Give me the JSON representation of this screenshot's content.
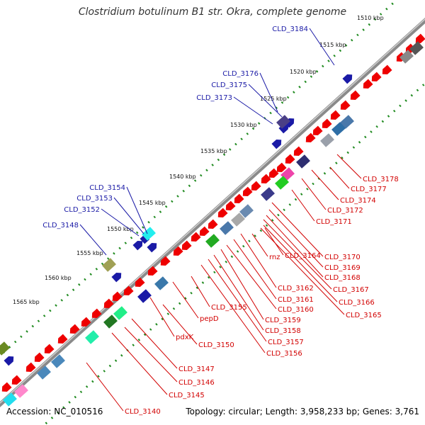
{
  "title": "Clostridium botulinum B1 str. Okra, complete genome",
  "footer": {
    "accession": "Accession: NC_010516",
    "summary": "Topology: circular; Length: 3,958,233 bp; Genes: 3,761"
  },
  "colors": {
    "forward_label": "#1a1aa6",
    "reverse_label": "#d20000",
    "dots": "#1f8a1f",
    "backbone": "#8a8a8a"
  },
  "ruler": [
    {
      "label": "1510 kbp"
    },
    {
      "label": "1515 kbp"
    },
    {
      "label": "1520 kbp"
    },
    {
      "label": "1525 kbp"
    },
    {
      "label": "1530 kbp"
    },
    {
      "label": "1535 kbp"
    },
    {
      "label": "1540 kbp"
    },
    {
      "label": "1545 kbp"
    },
    {
      "label": "1550 kbp"
    },
    {
      "label": "1555 kbp"
    },
    {
      "label": "1560 kbp"
    },
    {
      "label": "1565 kbp"
    }
  ],
  "forward_genes": [
    {
      "label": "CLD_3184"
    },
    {
      "label": "CLD_3176"
    },
    {
      "label": "CLD_3175"
    },
    {
      "label": "CLD_3173"
    },
    {
      "label": "CLD_3154"
    },
    {
      "label": "CLD_3153"
    },
    {
      "label": "CLD_3152"
    },
    {
      "label": "CLD_3148"
    }
  ],
  "reverse_genes": [
    {
      "label": "CLD_3178"
    },
    {
      "label": "CLD_3177"
    },
    {
      "label": "CLD_3174"
    },
    {
      "label": "CLD_3172"
    },
    {
      "label": "CLD_3171"
    },
    {
      "label": "CLD_3170"
    },
    {
      "label": "CLD_3169"
    },
    {
      "label": "CLD_3168"
    },
    {
      "label": "CLD_3167"
    },
    {
      "label": "CLD_3166"
    },
    {
      "label": "CLD_3165"
    },
    {
      "label": "rnz"
    },
    {
      "label": "CLD_3164"
    },
    {
      "label": "CLD_3162"
    },
    {
      "label": "CLD_3161"
    },
    {
      "label": "CLD_3160"
    },
    {
      "label": "CLD_3159"
    },
    {
      "label": "CLD_3158"
    },
    {
      "label": "CLD_3157"
    },
    {
      "label": "CLD_3156"
    },
    {
      "label": "CLD_3155"
    },
    {
      "label": "pepD"
    },
    {
      "label": "pdxK"
    },
    {
      "label": "CLD_3150"
    },
    {
      "label": "CLD_3147"
    },
    {
      "label": "CLD_3146"
    },
    {
      "label": "CLD_3145"
    },
    {
      "label": "CLD_3140"
    }
  ]
}
